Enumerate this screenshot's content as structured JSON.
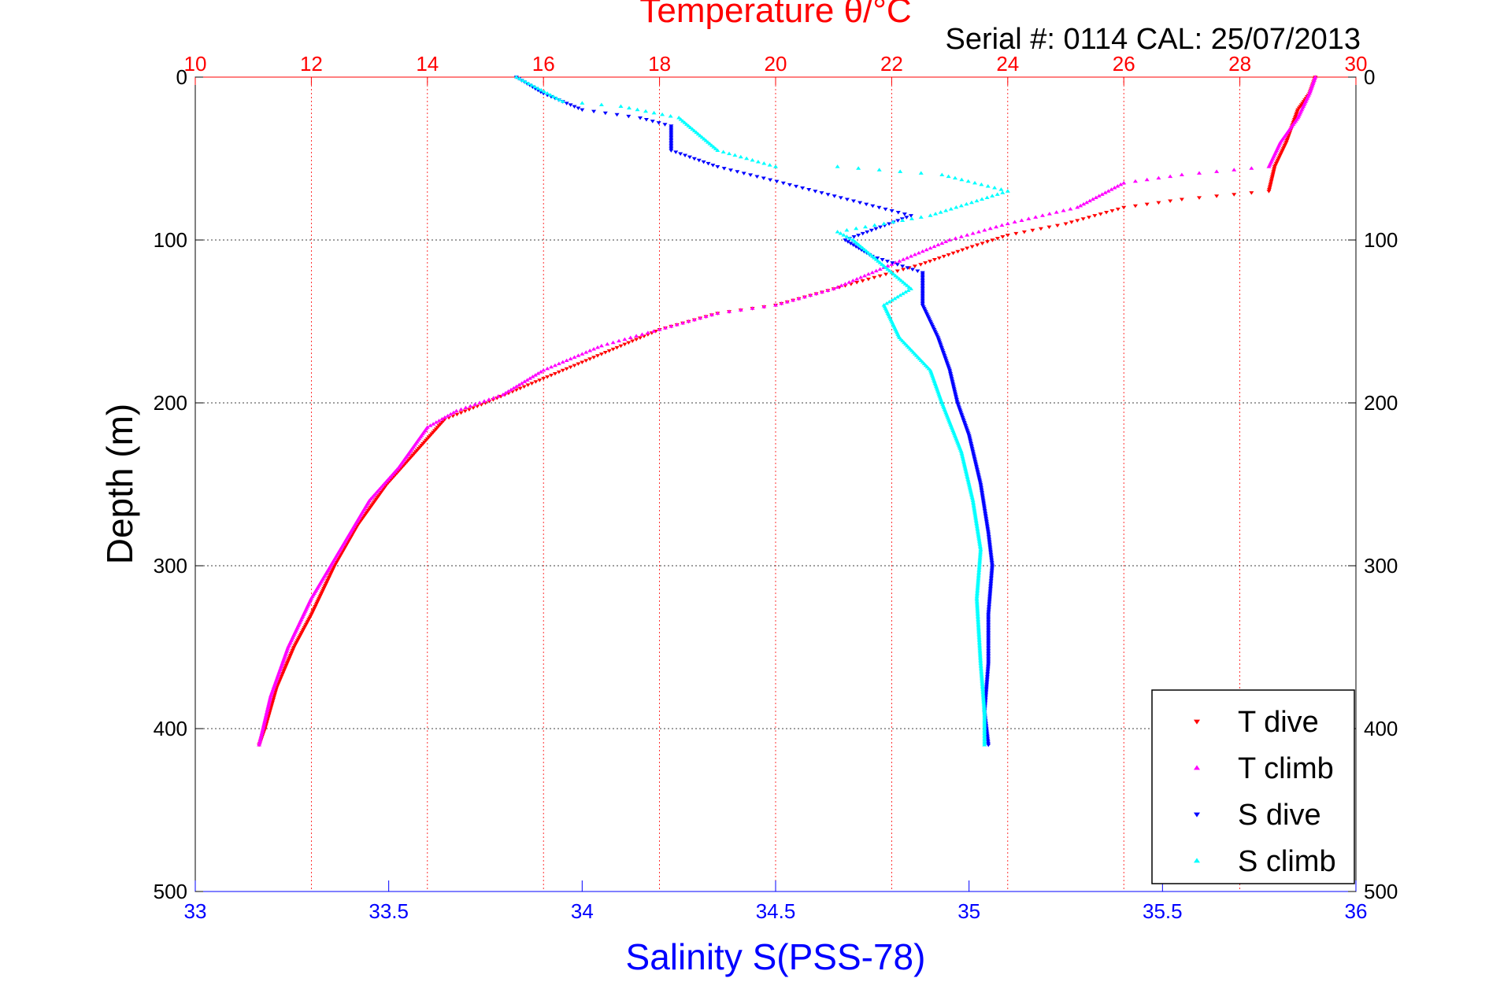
{
  "colors": {
    "temperature_axis": "#ff0000",
    "salinity_axis": "#0000ff",
    "t_dive": "#ff0000",
    "t_climb": "#ff00ff",
    "s_dive": "#0000ff",
    "s_climb": "#00ffff",
    "grid_depth": "#000000",
    "legend_border": "#000000"
  },
  "chart_data": {
    "type": "scatter",
    "title": "Temperature θ/°C",
    "subtitle": "Serial #: 0114  CAL: 25/07/2013",
    "ylabel": "Depth (m)",
    "xlabel": "Salinity S(PSS-78)",
    "y_axis": {
      "range": [
        0,
        500
      ],
      "inverted": true,
      "ticks": [
        0,
        100,
        200,
        300,
        400,
        500
      ],
      "labels_both_sides": true
    },
    "temperature_axis": {
      "position": "top",
      "range": [
        10,
        30
      ],
      "ticks": [
        10,
        12,
        14,
        16,
        18,
        20,
        22,
        24,
        26,
        28,
        30
      ],
      "gridlines": true
    },
    "salinity_axis": {
      "position": "bottom",
      "range": [
        33,
        36
      ],
      "ticks": [
        33,
        33.5,
        34,
        34.5,
        35,
        35.5,
        36
      ],
      "ticklabels": [
        "33",
        "33.5",
        "34",
        "34.5",
        "35",
        "35.5",
        "36"
      ]
    },
    "legend": {
      "position": "bottom-right",
      "entries": [
        "T dive",
        "T climb",
        "S dive",
        "S climb"
      ]
    },
    "series": [
      {
        "name": "T dive",
        "axis": "temperature",
        "marker": "down-triangle",
        "points": [
          [
            29.3,
            0
          ],
          [
            29.2,
            10
          ],
          [
            29.0,
            20
          ],
          [
            28.8,
            40
          ],
          [
            28.6,
            55
          ],
          [
            28.5,
            70
          ],
          [
            27.0,
            75
          ],
          [
            26.0,
            80
          ],
          [
            25.0,
            90
          ],
          [
            24.0,
            97
          ],
          [
            23.3,
            105
          ],
          [
            22.5,
            115
          ],
          [
            21.5,
            125
          ],
          [
            20.0,
            140
          ],
          [
            19.0,
            145
          ],
          [
            18.0,
            155
          ],
          [
            17.0,
            170
          ],
          [
            16.0,
            185
          ],
          [
            15.0,
            200
          ],
          [
            14.3,
            210
          ],
          [
            13.8,
            230
          ],
          [
            13.3,
            250
          ],
          [
            12.8,
            275
          ],
          [
            12.4,
            300
          ],
          [
            12.0,
            330
          ],
          [
            11.7,
            350
          ],
          [
            11.4,
            375
          ],
          [
            11.2,
            400
          ],
          [
            11.1,
            410
          ]
        ]
      },
      {
        "name": "T climb",
        "axis": "temperature",
        "marker": "up-triangle",
        "points": [
          [
            29.3,
            0
          ],
          [
            29.2,
            10
          ],
          [
            29.0,
            25
          ],
          [
            28.7,
            40
          ],
          [
            28.5,
            55
          ],
          [
            27.0,
            60
          ],
          [
            26.0,
            65
          ],
          [
            25.2,
            80
          ],
          [
            24.0,
            90
          ],
          [
            23.0,
            100
          ],
          [
            22.0,
            115
          ],
          [
            21.0,
            130
          ],
          [
            20.0,
            140
          ],
          [
            19.0,
            145
          ],
          [
            18.0,
            155
          ],
          [
            17.0,
            165
          ],
          [
            16.0,
            180
          ],
          [
            15.3,
            195
          ],
          [
            14.5,
            205
          ],
          [
            14.0,
            215
          ],
          [
            13.5,
            240
          ],
          [
            13.0,
            260
          ],
          [
            12.5,
            290
          ],
          [
            12.0,
            320
          ],
          [
            11.6,
            350
          ],
          [
            11.3,
            380
          ],
          [
            11.1,
            410
          ]
        ]
      },
      {
        "name": "S dive",
        "axis": "salinity",
        "marker": "down-triangle",
        "points": [
          [
            33.83,
            0
          ],
          [
            33.9,
            10
          ],
          [
            34.0,
            20
          ],
          [
            34.15,
            25
          ],
          [
            34.23,
            30
          ],
          [
            34.23,
            45
          ],
          [
            34.35,
            55
          ],
          [
            34.52,
            65
          ],
          [
            34.85,
            85
          ],
          [
            34.68,
            100
          ],
          [
            34.75,
            110
          ],
          [
            34.88,
            120
          ],
          [
            34.88,
            140
          ],
          [
            34.92,
            160
          ],
          [
            34.95,
            180
          ],
          [
            34.97,
            200
          ],
          [
            35.0,
            220
          ],
          [
            35.03,
            250
          ],
          [
            35.05,
            280
          ],
          [
            35.06,
            300
          ],
          [
            35.05,
            330
          ],
          [
            35.05,
            360
          ],
          [
            35.04,
            390
          ],
          [
            35.05,
            410
          ]
        ]
      },
      {
        "name": "S climb",
        "axis": "salinity",
        "marker": "up-triangle",
        "points": [
          [
            33.83,
            0
          ],
          [
            33.95,
            15
          ],
          [
            34.1,
            18
          ],
          [
            34.25,
            25
          ],
          [
            34.3,
            35
          ],
          [
            34.35,
            45
          ],
          [
            34.5,
            55
          ],
          [
            34.66,
            55
          ],
          [
            34.93,
            60
          ],
          [
            35.1,
            70
          ],
          [
            34.9,
            85
          ],
          [
            34.66,
            95
          ],
          [
            34.7,
            100
          ],
          [
            34.75,
            110
          ],
          [
            34.8,
            120
          ],
          [
            34.85,
            130
          ],
          [
            34.78,
            140
          ],
          [
            34.82,
            160
          ],
          [
            34.9,
            180
          ],
          [
            34.93,
            200
          ],
          [
            34.98,
            230
          ],
          [
            35.01,
            260
          ],
          [
            35.03,
            290
          ],
          [
            35.02,
            320
          ],
          [
            35.03,
            360
          ],
          [
            35.04,
            390
          ],
          [
            35.04,
            410
          ]
        ]
      }
    ]
  }
}
